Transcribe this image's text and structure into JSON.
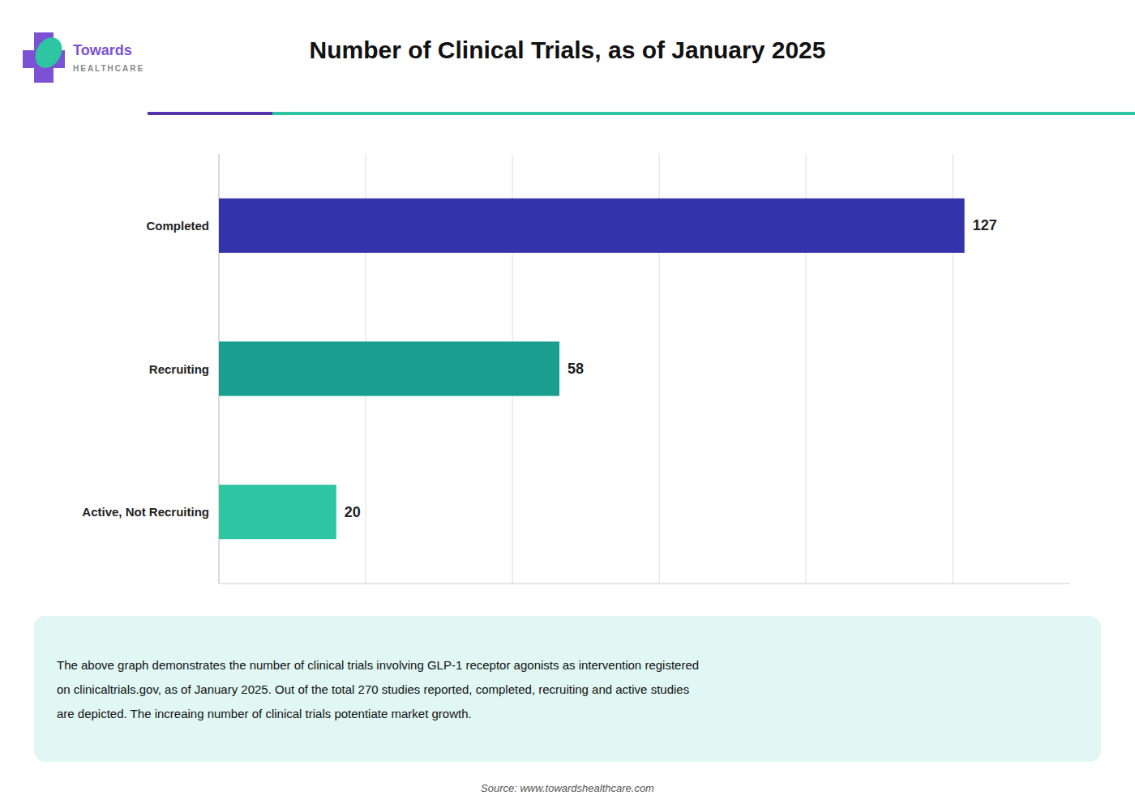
{
  "chart_data": {
    "type": "bar",
    "orientation": "horizontal",
    "title": "Number of Clinical Trials, as of January 2025",
    "categories": [
      "Active, Not Recruiting",
      "Recruiting",
      "Completed"
    ],
    "values": [
      20,
      58,
      127
    ],
    "colors": [
      "#2DC5A2",
      "#1A9E8F",
      "#3333AA"
    ],
    "xlim": [
      0,
      145
    ],
    "xticks": [
      0,
      25,
      50,
      75,
      100,
      125
    ],
    "grid": true,
    "tick_labels": "y",
    "data_labels": true,
    "annotations": [
      "The above graph demonstrates the number of clinical trials involving GLP-1 receptor agonists as intervention registered\non clinicaltrials.gov, as of January 2025. Out of the total 270 studies reported, completed, recruiting and active studies\nare depicted. The increaing number of clinical trials potentiate market growth.",
      "Source: www.towardshealthcare.com",
      "Towards",
      "HEALTHCARE"
    ]
  }
}
